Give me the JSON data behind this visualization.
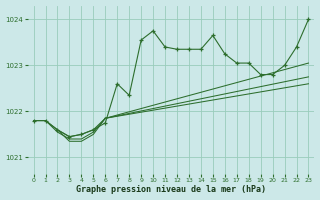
{
  "title": "Graphe pression niveau de la mer (hPa)",
  "bg_color": "#cce8e8",
  "grid_color": "#99ccbb",
  "line_color": "#2d6e2d",
  "xlim": [
    -0.5,
    23.5
  ],
  "ylim": [
    1020.65,
    1024.3
  ],
  "yticks": [
    1021,
    1022,
    1023,
    1024
  ],
  "xticks": [
    0,
    1,
    2,
    3,
    4,
    5,
    6,
    7,
    8,
    9,
    10,
    11,
    12,
    13,
    14,
    15,
    16,
    17,
    18,
    19,
    20,
    21,
    22,
    23
  ],
  "series": [
    {
      "x": [
        0,
        1,
        2,
        3,
        4,
        5,
        6,
        7,
        8,
        9,
        10,
        11,
        12,
        13,
        14,
        15,
        16,
        17,
        18,
        19,
        20,
        21,
        22,
        23
      ],
      "y": [
        1021.8,
        1021.8,
        1021.6,
        1021.45,
        1021.5,
        1021.6,
        1021.75,
        1022.6,
        1022.35,
        1023.55,
        1023.75,
        1023.4,
        1023.35,
        1023.35,
        1023.35,
        1023.65,
        1023.25,
        1023.05,
        1023.05,
        1022.8,
        1022.8,
        1023.0,
        1023.4,
        1024.0
      ],
      "has_markers": true
    },
    {
      "x": [
        6,
        23
      ],
      "y": [
        1021.85,
        1023.05
      ],
      "has_markers": false
    },
    {
      "x": [
        6,
        23
      ],
      "y": [
        1021.85,
        1022.75
      ],
      "has_markers": false
    },
    {
      "x": [
        6,
        23
      ],
      "y": [
        1021.85,
        1022.6
      ],
      "has_markers": false
    },
    {
      "x": [
        0,
        1,
        2,
        3,
        4,
        5,
        6
      ],
      "y": [
        1021.8,
        1021.8,
        1021.6,
        1021.45,
        1021.5,
        1021.6,
        1021.85
      ],
      "has_markers": false
    },
    {
      "x": [
        2,
        3,
        4,
        5,
        6
      ],
      "y": [
        1021.6,
        1021.35,
        1021.35,
        1021.5,
        1021.85
      ],
      "has_markers": false
    },
    {
      "x": [
        0,
        1,
        2,
        3,
        4,
        5,
        6
      ],
      "y": [
        1021.8,
        1021.8,
        1021.55,
        1021.4,
        1021.4,
        1021.55,
        1021.85
      ],
      "has_markers": false
    }
  ]
}
